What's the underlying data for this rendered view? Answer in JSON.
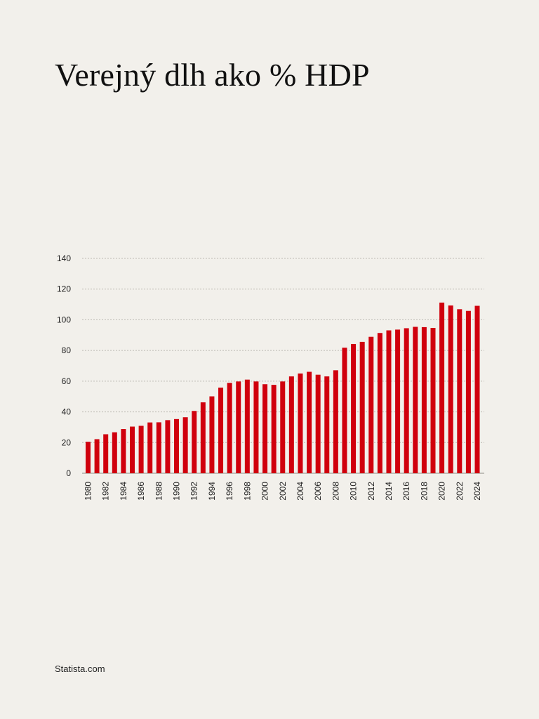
{
  "title": "Verejný dlh ako % HDP",
  "source": "Statista.com",
  "colors": {
    "bar": "#d0000d",
    "grid": "#bdbab3",
    "text": "#222222",
    "background": "#f2f0eb"
  },
  "chart_data": {
    "type": "bar",
    "title": "Verejný dlh ako % HDP",
    "xlabel": "",
    "ylabel": "",
    "ylim": [
      0,
      140
    ],
    "yticks": [
      0,
      20,
      40,
      60,
      80,
      100,
      120,
      140
    ],
    "grid": true,
    "categories": [
      "1980",
      "1981",
      "1982",
      "1983",
      "1984",
      "1985",
      "1986",
      "1987",
      "1988",
      "1989",
      "1990",
      "1991",
      "1992",
      "1993",
      "1994",
      "1995",
      "1996",
      "1997",
      "1998",
      "1999",
      "2000",
      "2001",
      "2002",
      "2003",
      "2004",
      "2005",
      "2006",
      "2007",
      "2008",
      "2009",
      "2010",
      "2011",
      "2012",
      "2013",
      "2014",
      "2015",
      "2016",
      "2017",
      "2018",
      "2019",
      "2020",
      "2021",
      "2022",
      "2023",
      "2024"
    ],
    "x_tick_labels": [
      "1980",
      "1982",
      "1984",
      "1986",
      "1988",
      "1990",
      "1992",
      "1994",
      "1996",
      "1998",
      "2000",
      "2002",
      "2004",
      "2006",
      "2008",
      "2010",
      "2012",
      "2014",
      "2016",
      "2018",
      "2020",
      "2022",
      "2024"
    ],
    "values": [
      20.5,
      22.2,
      25.4,
      26.7,
      28.8,
      30.4,
      30.9,
      33.1,
      33.2,
      34.6,
      35.3,
      36.5,
      40.6,
      46.2,
      50.1,
      55.8,
      58.9,
      59.8,
      61.0,
      59.8,
      58.0,
      57.6,
      59.8,
      63.1,
      65.0,
      66.1,
      64.2,
      63.1,
      67.1,
      81.8,
      84.2,
      85.6,
      88.9,
      91.4,
      93.1,
      93.6,
      94.5,
      95.4,
      95.2,
      94.7,
      111.2,
      109.3,
      106.9,
      105.8,
      109.1
    ]
  }
}
